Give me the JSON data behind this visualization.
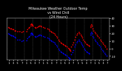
{
  "title": "Milwaukee Weather Outdoor Temp\nvs Wind Chill\n(24 Hours)",
  "title_fontsize": 3.5,
  "bg_color": "#000000",
  "text_color": "#ffffff",
  "temp_color": "#ff0000",
  "windchill_color": "#0000ff",
  "marker_size": 1.5,
  "xlim": [
    0,
    48
  ],
  "ylim": [
    -15,
    40
  ],
  "ytick_vals": [
    -10,
    0,
    10,
    20,
    30,
    40
  ],
  "ytick_labels": [
    "-10",
    "0",
    "10",
    "20",
    "30",
    "40"
  ],
  "xtick_vals": [
    1,
    3,
    5,
    7,
    9,
    11,
    13,
    15,
    17,
    19,
    21,
    23,
    25,
    27,
    29,
    31,
    33,
    35,
    37,
    39,
    41,
    43,
    45,
    47
  ],
  "xtick_labels": [
    "1",
    "3",
    "5",
    "7",
    "1",
    "5",
    "3",
    "7",
    "1",
    "5",
    "3",
    "7",
    "1",
    "5",
    "3",
    "7",
    "1",
    "5",
    "3",
    "7",
    "1",
    "5",
    "3",
    "7"
  ],
  "grid_x_vals": [
    0,
    4,
    8,
    12,
    16,
    20,
    24,
    28,
    32,
    36,
    40,
    44,
    48
  ],
  "grid_color": "#555555",
  "temp_data": [
    [
      0.5,
      28
    ],
    [
      1.0,
      27
    ],
    [
      1.5,
      26
    ],
    [
      2.0,
      26
    ],
    [
      2.5,
      25
    ],
    [
      3.0,
      25
    ],
    [
      3.5,
      24
    ],
    [
      4.0,
      24
    ],
    [
      5.0,
      23
    ],
    [
      6.0,
      23
    ],
    [
      7.0,
      22
    ],
    [
      7.5,
      23
    ],
    [
      9.0,
      23
    ],
    [
      9.5,
      25
    ],
    [
      10.0,
      27
    ],
    [
      10.5,
      28
    ],
    [
      11.0,
      30
    ],
    [
      11.2,
      32
    ],
    [
      11.4,
      33
    ],
    [
      11.6,
      32
    ],
    [
      11.8,
      31
    ],
    [
      12.0,
      30
    ],
    [
      13.0,
      28
    ],
    [
      13.5,
      27
    ],
    [
      14.0,
      28
    ],
    [
      14.5,
      29
    ],
    [
      15.0,
      30
    ],
    [
      15.5,
      30
    ],
    [
      16.0,
      29
    ],
    [
      17.0,
      28
    ],
    [
      17.5,
      27
    ],
    [
      19.0,
      26
    ],
    [
      19.5,
      25
    ],
    [
      20.0,
      24
    ],
    [
      20.5,
      23
    ],
    [
      21.0,
      22
    ],
    [
      21.5,
      21
    ],
    [
      22.0,
      20
    ],
    [
      22.5,
      18
    ],
    [
      23.0,
      16
    ],
    [
      23.5,
      14
    ],
    [
      24.0,
      12
    ],
    [
      24.5,
      10
    ],
    [
      25.0,
      8
    ],
    [
      25.5,
      7
    ],
    [
      26.0,
      6
    ],
    [
      26.5,
      5
    ],
    [
      27.0,
      4
    ],
    [
      27.5,
      3
    ],
    [
      28.0,
      2
    ],
    [
      28.5,
      1
    ],
    [
      29.0,
      0
    ],
    [
      29.2,
      -1
    ],
    [
      29.4,
      -2
    ],
    [
      29.6,
      -3
    ],
    [
      30.0,
      2
    ],
    [
      30.5,
      5
    ],
    [
      31.0,
      8
    ],
    [
      31.5,
      12
    ],
    [
      32.0,
      15
    ],
    [
      32.5,
      18
    ],
    [
      33.0,
      20
    ],
    [
      33.5,
      22
    ],
    [
      34.0,
      20
    ],
    [
      34.5,
      18
    ],
    [
      35.0,
      16
    ],
    [
      35.2,
      14
    ],
    [
      35.4,
      12
    ],
    [
      36.0,
      10
    ],
    [
      36.5,
      8
    ],
    [
      37.0,
      6
    ],
    [
      37.5,
      5
    ],
    [
      38.0,
      4
    ],
    [
      38.5,
      3
    ],
    [
      39.0,
      28
    ],
    [
      39.2,
      30
    ],
    [
      39.4,
      32
    ],
    [
      39.6,
      30
    ],
    [
      40.0,
      26
    ],
    [
      40.5,
      24
    ],
    [
      41.0,
      22
    ],
    [
      41.5,
      20
    ],
    [
      42.0,
      18
    ],
    [
      42.5,
      16
    ],
    [
      43.0,
      14
    ],
    [
      43.5,
      12
    ],
    [
      44.0,
      10
    ],
    [
      44.5,
      8
    ],
    [
      45.0,
      6
    ],
    [
      45.5,
      4
    ],
    [
      46.0,
      2
    ],
    [
      46.5,
      0
    ]
  ],
  "wc_data": [
    [
      0.5,
      20
    ],
    [
      1.0,
      19
    ],
    [
      1.5,
      18
    ],
    [
      2.0,
      17
    ],
    [
      2.5,
      17
    ],
    [
      3.0,
      16
    ],
    [
      3.5,
      15
    ],
    [
      4.0,
      14
    ],
    [
      5.0,
      12
    ],
    [
      6.0,
      12
    ],
    [
      7.0,
      10
    ],
    [
      7.5,
      11
    ],
    [
      9.0,
      11
    ],
    [
      9.5,
      13
    ],
    [
      10.0,
      15
    ],
    [
      10.5,
      16
    ],
    [
      11.0,
      18
    ],
    [
      11.2,
      20
    ],
    [
      11.4,
      21
    ],
    [
      11.6,
      20
    ],
    [
      11.8,
      19
    ],
    [
      12.0,
      18
    ],
    [
      13.0,
      16
    ],
    [
      13.5,
      15
    ],
    [
      14.0,
      16
    ],
    [
      14.5,
      17
    ],
    [
      15.0,
      18
    ],
    [
      15.5,
      18
    ],
    [
      16.0,
      17
    ],
    [
      17.0,
      16
    ],
    [
      17.5,
      15
    ],
    [
      19.0,
      14
    ],
    [
      19.5,
      13
    ],
    [
      20.0,
      12
    ],
    [
      20.5,
      11
    ],
    [
      21.0,
      10
    ],
    [
      21.5,
      9
    ],
    [
      22.0,
      8
    ],
    [
      22.5,
      6
    ],
    [
      23.0,
      4
    ],
    [
      23.5,
      2
    ],
    [
      24.0,
      0
    ],
    [
      24.5,
      -2
    ],
    [
      25.0,
      -4
    ],
    [
      25.5,
      -5
    ],
    [
      26.0,
      -6
    ],
    [
      26.5,
      -7
    ],
    [
      27.0,
      -8
    ],
    [
      27.5,
      -9
    ],
    [
      28.0,
      -10
    ],
    [
      28.5,
      -11
    ],
    [
      29.0,
      -12
    ],
    [
      29.2,
      -13
    ],
    [
      29.4,
      -14
    ],
    [
      30.0,
      -8
    ],
    [
      30.5,
      -5
    ],
    [
      31.0,
      -2
    ],
    [
      31.5,
      2
    ],
    [
      32.0,
      5
    ],
    [
      32.5,
      8
    ],
    [
      33.0,
      10
    ],
    [
      33.5,
      12
    ],
    [
      34.0,
      10
    ],
    [
      34.5,
      8
    ],
    [
      35.0,
      6
    ],
    [
      35.2,
      4
    ],
    [
      35.4,
      2
    ],
    [
      36.0,
      0
    ],
    [
      36.5,
      -2
    ],
    [
      37.0,
      -4
    ],
    [
      37.5,
      -5
    ],
    [
      38.0,
      -6
    ],
    [
      38.5,
      -7
    ],
    [
      39.0,
      18
    ],
    [
      39.2,
      20
    ],
    [
      39.4,
      22
    ],
    [
      39.6,
      20
    ],
    [
      40.0,
      16
    ],
    [
      40.5,
      14
    ],
    [
      41.0,
      12
    ],
    [
      41.5,
      10
    ],
    [
      42.0,
      8
    ],
    [
      42.5,
      6
    ],
    [
      43.0,
      4
    ],
    [
      43.5,
      2
    ],
    [
      44.0,
      0
    ],
    [
      44.5,
      -2
    ],
    [
      45.0,
      -4
    ],
    [
      45.5,
      -6
    ],
    [
      46.0,
      -8
    ],
    [
      46.5,
      -10
    ]
  ]
}
